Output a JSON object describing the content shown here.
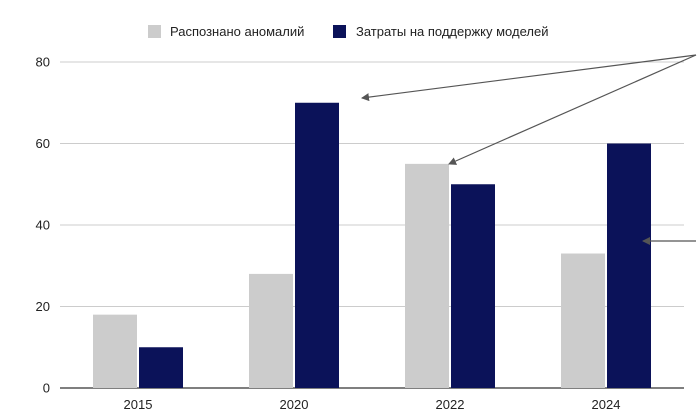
{
  "chart_data": {
    "type": "bar",
    "categories": [
      "2015",
      "2020",
      "2022",
      "2024"
    ],
    "series": [
      {
        "name": "Распознано аномалий",
        "values": [
          18,
          28,
          55,
          33
        ],
        "color": "#cccccc"
      },
      {
        "name": "Затраты на поддержку моделей",
        "values": [
          10,
          70,
          50,
          60
        ],
        "color": "#0b1259"
      }
    ],
    "ylim": [
      0,
      80
    ],
    "yticks": [
      "0",
      "20",
      "40",
      "60",
      "80"
    ],
    "grid": true,
    "legend": "top-center",
    "annotation_color": "#555555"
  }
}
